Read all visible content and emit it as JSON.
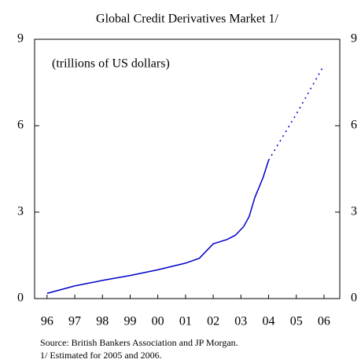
{
  "chart_data": {
    "type": "line",
    "title": "Global Credit Derivatives Market 1/",
    "annotation": "(trillions of US dollars)",
    "source": "Source: British Bankers Association and JP Morgan.",
    "footnote": "1/ Estimated for 2005 and 2006.",
    "x": [
      1996,
      1997,
      1998,
      1999,
      2000,
      2001,
      2001.5,
      2002,
      2002.5,
      2002.8,
      2003.1,
      2003.3,
      2003.5,
      2003.8,
      2004,
      2005,
      2006
    ],
    "series": [
      {
        "color": "#0000cc",
        "style": "solid",
        "values": [
          0.18,
          0.44,
          0.63,
          0.8,
          1.0,
          1.23,
          1.4,
          1.9,
          2.05,
          2.2,
          2.5,
          2.85,
          3.5,
          4.2,
          4.8,
          null,
          null
        ]
      },
      {
        "color": "#0000cc",
        "style": "dotted",
        "values": [
          null,
          null,
          null,
          null,
          null,
          null,
          null,
          null,
          null,
          null,
          null,
          null,
          null,
          null,
          4.8,
          6.4,
          8.1
        ]
      }
    ],
    "xlim": [
      1995.55,
      2006.57
    ],
    "xticks": [
      {
        "value": 1996,
        "label": "96"
      },
      {
        "value": 1997,
        "label": "97"
      },
      {
        "value": 1998,
        "label": "98"
      },
      {
        "value": 1999,
        "label": "99"
      },
      {
        "value": 2000,
        "label": "00"
      },
      {
        "value": 2001,
        "label": "01"
      },
      {
        "value": 2002,
        "label": "02"
      },
      {
        "value": 2003,
        "label": "03"
      },
      {
        "value": 2004,
        "label": "04"
      },
      {
        "value": 2005,
        "label": "05"
      },
      {
        "value": 2006,
        "label": "06"
      }
    ],
    "ylim": [
      0,
      9
    ],
    "yticks": [
      0,
      3,
      6,
      9
    ],
    "y2lim": [
      0,
      9
    ],
    "y2ticks": [
      0,
      3,
      6,
      9
    ]
  }
}
